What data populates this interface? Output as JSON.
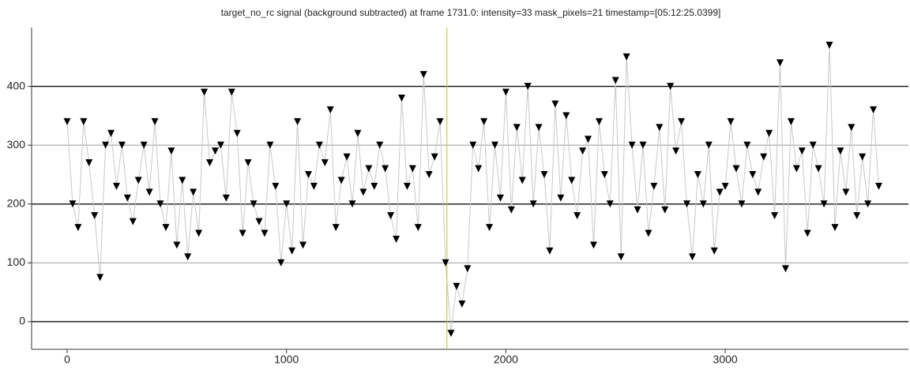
{
  "chart_data": {
    "type": "scatter",
    "title": "target_no_rc signal (background subtracted) at frame 1731.0: intensity=33 mask_pixels=21 timestamp=[05:12:25.0399]",
    "x": [
      0,
      25,
      50,
      75,
      100,
      125,
      150,
      175,
      200,
      225,
      250,
      275,
      300,
      325,
      350,
      375,
      400,
      425,
      450,
      475,
      500,
      525,
      550,
      575,
      600,
      625,
      650,
      675,
      700,
      725,
      750,
      775,
      800,
      825,
      850,
      875,
      900,
      925,
      950,
      975,
      1000,
      1025,
      1050,
      1075,
      1100,
      1125,
      1150,
      1175,
      1200,
      1225,
      1250,
      1275,
      1300,
      1325,
      1350,
      1375,
      1400,
      1425,
      1450,
      1475,
      1500,
      1525,
      1550,
      1575,
      1600,
      1625,
      1650,
      1675,
      1700,
      1725,
      1750,
      1775,
      1800,
      1825,
      1850,
      1875,
      1900,
      1925,
      1950,
      1975,
      2000,
      2025,
      2050,
      2075,
      2100,
      2125,
      2150,
      2175,
      2200,
      2225,
      2250,
      2275,
      2300,
      2325,
      2350,
      2375,
      2400,
      2425,
      2450,
      2475,
      2500,
      2525,
      2550,
      2575,
      2600,
      2625,
      2650,
      2675,
      2700,
      2725,
      2750,
      2775,
      2800,
      2825,
      2850,
      2875,
      2900,
      2925,
      2950,
      2975,
      3000,
      3025,
      3050,
      3075,
      3100,
      3125,
      3150,
      3175,
      3200,
      3225,
      3250,
      3275,
      3300,
      3325,
      3350,
      3375,
      3400,
      3425,
      3450,
      3475,
      3500,
      3525,
      3550,
      3575,
      3600,
      3625,
      3650,
      3675,
      3700
    ],
    "values": [
      340,
      200,
      160,
      340,
      270,
      180,
      75,
      300,
      320,
      230,
      300,
      210,
      170,
      240,
      300,
      220,
      340,
      200,
      160,
      290,
      130,
      240,
      110,
      220,
      150,
      390,
      270,
      290,
      300,
      210,
      390,
      320,
      150,
      270,
      200,
      170,
      150,
      300,
      230,
      100,
      200,
      120,
      340,
      130,
      250,
      230,
      300,
      270,
      360,
      160,
      240,
      280,
      200,
      320,
      220,
      260,
      230,
      300,
      260,
      180,
      140,
      380,
      230,
      260,
      160,
      420,
      250,
      280,
      340,
      100,
      -20,
      60,
      30,
      90,
      300,
      260,
      340,
      160,
      300,
      210,
      390,
      190,
      330,
      240,
      400,
      200,
      330,
      250,
      120,
      370,
      210,
      350,
      240,
      180,
      290,
      310,
      130,
      340,
      250,
      200,
      410,
      110,
      450,
      300,
      190,
      300,
      150,
      230,
      330,
      190,
      400,
      290,
      340,
      200,
      110,
      250,
      200,
      300,
      120,
      220,
      230,
      340,
      260,
      200,
      300,
      250,
      220,
      280,
      320,
      180,
      440,
      90,
      340,
      260,
      290,
      150,
      300,
      260,
      200,
      470,
      160,
      290,
      220,
      330,
      180,
      280,
      200,
      360,
      230
    ],
    "color": "#000000",
    "line_color": "#c8c8c8",
    "cursor_x": 1731,
    "cursor_color": "#c8c860",
    "xlim": [
      -162,
      3835
    ],
    "ylim": [
      -47,
      500
    ],
    "xticks": [
      0,
      1000,
      2000,
      3000
    ],
    "yticks": [
      0,
      100,
      200,
      300,
      400
    ],
    "grid": true
  }
}
